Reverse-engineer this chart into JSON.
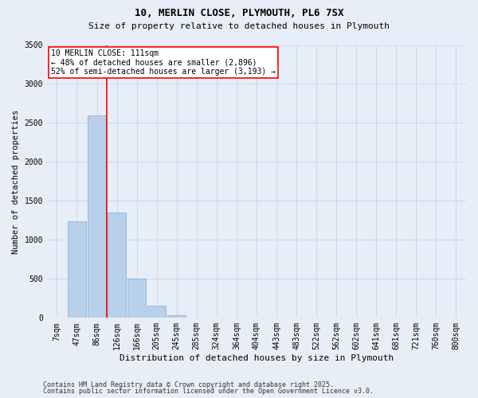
{
  "title1": "10, MERLIN CLOSE, PLYMOUTH, PL6 7SX",
  "title2": "Size of property relative to detached houses in Plymouth",
  "xlabel": "Distribution of detached houses by size in Plymouth",
  "ylabel": "Number of detached properties",
  "categories": [
    "7sqm",
    "47sqm",
    "86sqm",
    "126sqm",
    "166sqm",
    "205sqm",
    "245sqm",
    "285sqm",
    "324sqm",
    "364sqm",
    "404sqm",
    "443sqm",
    "483sqm",
    "522sqm",
    "562sqm",
    "602sqm",
    "641sqm",
    "681sqm",
    "721sqm",
    "760sqm",
    "800sqm"
  ],
  "values": [
    0,
    1240,
    2600,
    1350,
    500,
    155,
    30,
    5,
    0,
    0,
    0,
    0,
    0,
    0,
    0,
    0,
    0,
    0,
    0,
    0,
    0
  ],
  "bar_color": "#b8d0ea",
  "bar_edge_color": "#7aadd4",
  "grid_color": "#c8d4e4",
  "background_color": "#e8eef8",
  "vline_color": "red",
  "vline_x": 2.5,
  "annotation_title": "10 MERLIN CLOSE: 111sqm",
  "annotation_line1": "← 48% of detached houses are smaller (2,896)",
  "annotation_line2": "52% of semi-detached houses are larger (3,193) →",
  "annotation_box_edge": "red",
  "footnote1": "Contains HM Land Registry data © Crown copyright and database right 2025.",
  "footnote2": "Contains public sector information licensed under the Open Government Licence v3.0.",
  "ylim": [
    0,
    3500
  ],
  "yticks": [
    0,
    500,
    1000,
    1500,
    2000,
    2500,
    3000,
    3500
  ],
  "title1_fontsize": 9,
  "title2_fontsize": 8,
  "xlabel_fontsize": 8,
  "ylabel_fontsize": 7.5,
  "tick_fontsize": 7,
  "annotation_fontsize": 7,
  "footnote_fontsize": 6
}
